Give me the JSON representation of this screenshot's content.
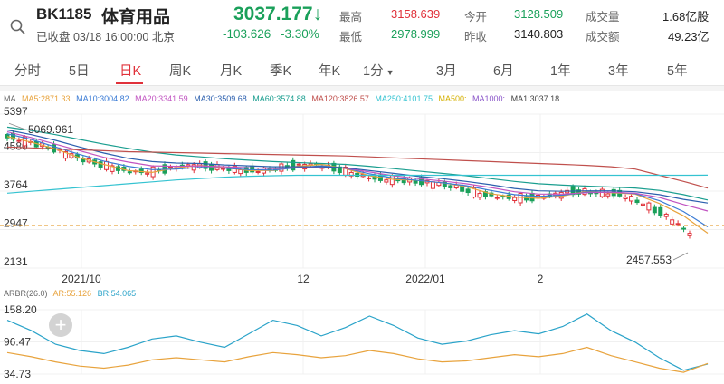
{
  "header": {
    "code": "BK1185",
    "name": "体育用品",
    "price": "3037.177",
    "status": "已收盘 03/18 16:00:00 北京",
    "change": "-103.626",
    "change_pct": "-3.30%",
    "stats": [
      {
        "label": "最高",
        "value": "3158.639",
        "color": "red"
      },
      {
        "label": "今开",
        "value": "3128.509",
        "color": "green"
      },
      {
        "label": "成交量",
        "value": "1.68亿股",
        "color": "dark"
      },
      {
        "label": "最低",
        "value": "2978.999",
        "color": "green"
      },
      {
        "label": "昨收",
        "value": "3140.803",
        "color": "dark"
      },
      {
        "label": "成交额",
        "value": "49.23亿",
        "color": "dark"
      }
    ]
  },
  "tabs": [
    "分时",
    "5日",
    "日K",
    "周K",
    "月K",
    "季K",
    "年K",
    "1分",
    "3月",
    "6月",
    "1年",
    "3年",
    "5年"
  ],
  "active_tab": "日K",
  "ma_legend": [
    {
      "text": "MA",
      "color": "#666666"
    },
    {
      "text": "MA5:2871.33",
      "color": "#e8a33d"
    },
    {
      "text": "MA10:3004.82",
      "color": "#3a7bd5"
    },
    {
      "text": "MA20:3341.59",
      "color": "#c154c1"
    },
    {
      "text": "MA30:3509.68",
      "color": "#2b5fae"
    },
    {
      "text": "MA60:3574.88",
      "color": "#1a9e8f"
    },
    {
      "text": "MA120:3826.57",
      "color": "#c0504d"
    },
    {
      "text": "MA250:4101.75",
      "color": "#35c3d1"
    },
    {
      "text": "MA500:",
      "color": "#d4b000"
    },
    {
      "text": "MA1000:",
      "color": "#8a55c9"
    },
    {
      "text": "MA1:3037.18",
      "color": "#444444"
    }
  ],
  "arbr_legend": [
    {
      "text": "ARBR(26.0)",
      "color": "#666666"
    },
    {
      "text": "AR:55.126",
      "color": "#e8a33d"
    },
    {
      "text": "BR:54.065",
      "color": "#2aa3c9"
    }
  ],
  "colors": {
    "up": "#e0313a",
    "down": "#1aa05a"
  },
  "chart_data": {
    "type": "line",
    "title": "BK1185 日K",
    "y_ticks": [
      "5397",
      "4580",
      "3764",
      "2947",
      "2131"
    ],
    "ylim": [
      2131,
      5397
    ],
    "x_ticks": [
      "2021/10",
      "12",
      "2022/01",
      "2"
    ],
    "annotations": {
      "high": "5069.961",
      "low": "2457.553"
    },
    "last_close": 3037.18,
    "series": [
      {
        "name": "MA5",
        "color": "#e8a33d",
        "values": [
          4920,
          4800,
          4660,
          4470,
          4330,
          4200,
          4160,
          4260,
          4310,
          4260,
          4200,
          4200,
          4290,
          4330,
          4240,
          4090,
          4010,
          3990,
          3940,
          3860,
          3710,
          3640,
          3610,
          3660,
          3760,
          3730,
          3700,
          3500,
          3240,
          2871
        ]
      },
      {
        "name": "MA10",
        "color": "#3a7bd5",
        "values": [
          4980,
          4860,
          4700,
          4540,
          4400,
          4290,
          4220,
          4230,
          4270,
          4250,
          4220,
          4210,
          4260,
          4300,
          4250,
          4130,
          4040,
          3990,
          3940,
          3880,
          3780,
          3690,
          3650,
          3680,
          3740,
          3740,
          3710,
          3560,
          3330,
          3005
        ]
      },
      {
        "name": "MA20",
        "color": "#c154c1",
        "values": [
          5020,
          4900,
          4760,
          4620,
          4480,
          4380,
          4300,
          4290,
          4300,
          4280,
          4260,
          4240,
          4260,
          4280,
          4250,
          4170,
          4090,
          4030,
          3980,
          3920,
          3840,
          3750,
          3700,
          3700,
          3730,
          3740,
          3720,
          3630,
          3480,
          3342
        ]
      },
      {
        "name": "MA30",
        "color": "#2b5fae",
        "values": [
          5060,
          4960,
          4840,
          4700,
          4570,
          4460,
          4390,
          4360,
          4350,
          4320,
          4300,
          4280,
          4280,
          4280,
          4260,
          4200,
          4140,
          4080,
          4030,
          3970,
          3900,
          3820,
          3770,
          3760,
          3770,
          3770,
          3750,
          3690,
          3590,
          3510
        ]
      },
      {
        "name": "MA60",
        "color": "#1a9e8f",
        "values": [
          5120,
          5050,
          4960,
          4860,
          4760,
          4670,
          4590,
          4530,
          4490,
          4450,
          4420,
          4390,
          4370,
          4350,
          4330,
          4290,
          4240,
          4190,
          4140,
          4090,
          4030,
          3970,
          3920,
          3890,
          3870,
          3850,
          3830,
          3780,
          3690,
          3575
        ]
      },
      {
        "name": "MA120",
        "color": "#c0504d",
        "values": [
          4700,
          4680,
          4660,
          4640,
          4620,
          4600,
          4590,
          4580,
          4570,
          4560,
          4550,
          4540,
          4530,
          4520,
          4510,
          4490,
          4470,
          4450,
          4430,
          4410,
          4390,
          4370,
          4350,
          4330,
          4310,
          4280,
          4230,
          4100,
          3970,
          3827
        ]
      },
      {
        "name": "MA250",
        "color": "#35c3d1",
        "values": [
          3720,
          3760,
          3800,
          3840,
          3880,
          3920,
          3960,
          4000,
          4030,
          4060,
          4080,
          4090,
          4100,
          4100,
          4100,
          4100,
          4100,
          4100,
          4100,
          4100,
          4100,
          4100,
          4100,
          4100,
          4100,
          4100,
          4100,
          4100,
          4100,
          4102
        ]
      }
    ],
    "arbr": {
      "y_ticks": [
        "158.20",
        "96.47",
        "34.73"
      ],
      "ylim": [
        34.73,
        158.2
      ],
      "series": [
        {
          "name": "BR",
          "color": "#2aa3c9",
          "values": [
            138,
            118,
            92,
            80,
            74,
            86,
            102,
            108,
            96,
            86,
            112,
            138,
            128,
            108,
            124,
            146,
            128,
            104,
            92,
            98,
            110,
            118,
            112,
            126,
            150,
            118,
            96,
            66,
            42,
            54
          ]
        },
        {
          "name": "AR",
          "color": "#e8a33d",
          "values": [
            76,
            68,
            58,
            50,
            46,
            52,
            62,
            66,
            62,
            58,
            68,
            76,
            72,
            66,
            70,
            80,
            74,
            64,
            58,
            60,
            66,
            72,
            68,
            74,
            86,
            70,
            58,
            46,
            38,
            55
          ]
        }
      ]
    }
  }
}
